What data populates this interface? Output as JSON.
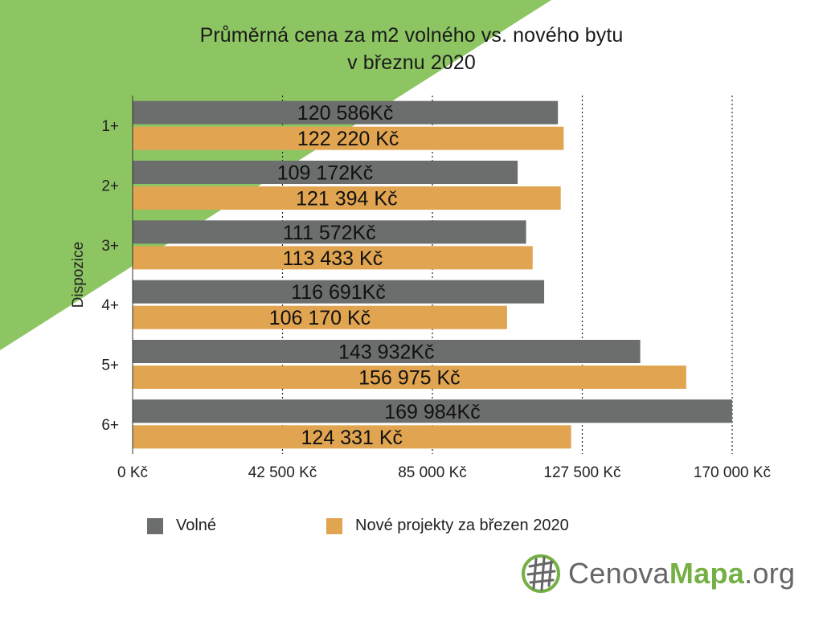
{
  "colors": {
    "background_triangle": "#8dc563",
    "volne": "#6b6e6c",
    "nove": "#e1a551",
    "brand_green": "#74b043",
    "brand_gray": "#666666"
  },
  "title": {
    "line1": "Průměrná cena za m2 volného vs. nového bytu",
    "line2": "v březnu 2020"
  },
  "legend": {
    "volne": "Volné",
    "nove": "Nové projekty za březen 2020"
  },
  "logo": {
    "part1": "Cenova",
    "part2": "Mapa",
    "part3": ".org",
    "icon": "globe-grid-icon"
  },
  "chart_data": {
    "type": "bar",
    "orientation": "horizontal",
    "title": "Průměrná cena za m2 volného vs. nového bytu v březnu 2020",
    "ylabel": "Dispozice",
    "xlabel": "",
    "xlim": [
      0,
      170000
    ],
    "x_ticks": [
      0,
      42500,
      85000,
      127500,
      170000
    ],
    "x_tick_labels": [
      "0 Kč",
      "42 500 Kč",
      "85 000 Kč",
      "127 500 Kč",
      "170 000 Kč"
    ],
    "grid": "vertical dotted",
    "legend_position": "bottom",
    "categories": [
      "1+",
      "2+",
      "3+",
      "4+",
      "5+",
      "6+"
    ],
    "series": [
      {
        "name": "Volné",
        "values": [
          120586,
          109172,
          111572,
          116691,
          143932,
          169984
        ],
        "labels": [
          "120 586Kč",
          "109 172Kč",
          "111 572Kč",
          "116 691Kč",
          "143 932Kč",
          "169 984Kč"
        ]
      },
      {
        "name": "Nové projekty za březen 2020",
        "values": [
          122220,
          121394,
          113433,
          106170,
          156975,
          124331
        ],
        "labels": [
          "122 220 Kč",
          "121 394 Kč",
          "113 433 Kč",
          "106 170 Kč",
          "156 975 Kč",
          "124 331 Kč"
        ]
      }
    ]
  }
}
